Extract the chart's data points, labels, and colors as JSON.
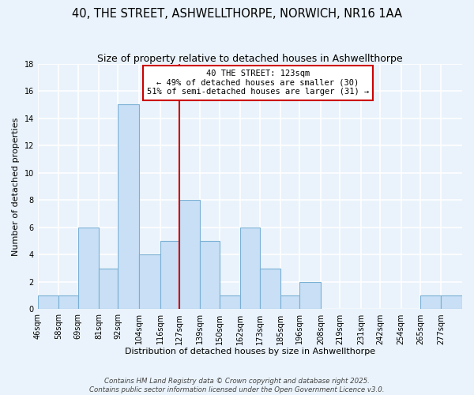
{
  "title": "40, THE STREET, ASHWELLTHORPE, NORWICH, NR16 1AA",
  "subtitle": "Size of property relative to detached houses in Ashwellthorpe",
  "xlabel": "Distribution of detached houses by size in Ashwellthorpe",
  "ylabel": "Number of detached properties",
  "bin_labels": [
    "46sqm",
    "58sqm",
    "69sqm",
    "81sqm",
    "92sqm",
    "104sqm",
    "116sqm",
    "127sqm",
    "139sqm",
    "150sqm",
    "162sqm",
    "173sqm",
    "185sqm",
    "196sqm",
    "208sqm",
    "219sqm",
    "231sqm",
    "242sqm",
    "254sqm",
    "265sqm",
    "277sqm"
  ],
  "bin_edges": [
    46,
    58,
    69,
    81,
    92,
    104,
    116,
    127,
    139,
    150,
    162,
    173,
    185,
    196,
    208,
    219,
    231,
    242,
    254,
    265,
    277,
    289
  ],
  "counts": [
    1,
    1,
    6,
    3,
    15,
    4,
    5,
    8,
    5,
    1,
    6,
    3,
    1,
    2,
    0,
    0,
    0,
    0,
    0,
    1,
    1
  ],
  "bar_color": "#c8dff5",
  "bar_edge_color": "#7ab0d4",
  "vline_x": 127,
  "vline_color": "#cc0000",
  "annotation_title": "40 THE STREET: 123sqm",
  "annotation_line1": "← 49% of detached houses are smaller (30)",
  "annotation_line2": "51% of semi-detached houses are larger (31) →",
  "annotation_box_color": "#ffffff",
  "annotation_box_edge": "#cc0000",
  "ylim": [
    0,
    18
  ],
  "yticks": [
    0,
    2,
    4,
    6,
    8,
    10,
    12,
    14,
    16,
    18
  ],
  "footer1": "Contains HM Land Registry data © Crown copyright and database right 2025.",
  "footer2": "Contains public sector information licensed under the Open Government Licence v3.0.",
  "bg_color": "#eaf3fb",
  "plot_bg_color": "#eaf3fb",
  "grid_color": "#ffffff",
  "title_fontsize": 10.5,
  "subtitle_fontsize": 9,
  "axis_label_fontsize": 8,
  "tick_fontsize": 7,
  "annotation_fontsize": 7.5,
  "footer_fontsize": 6.2
}
